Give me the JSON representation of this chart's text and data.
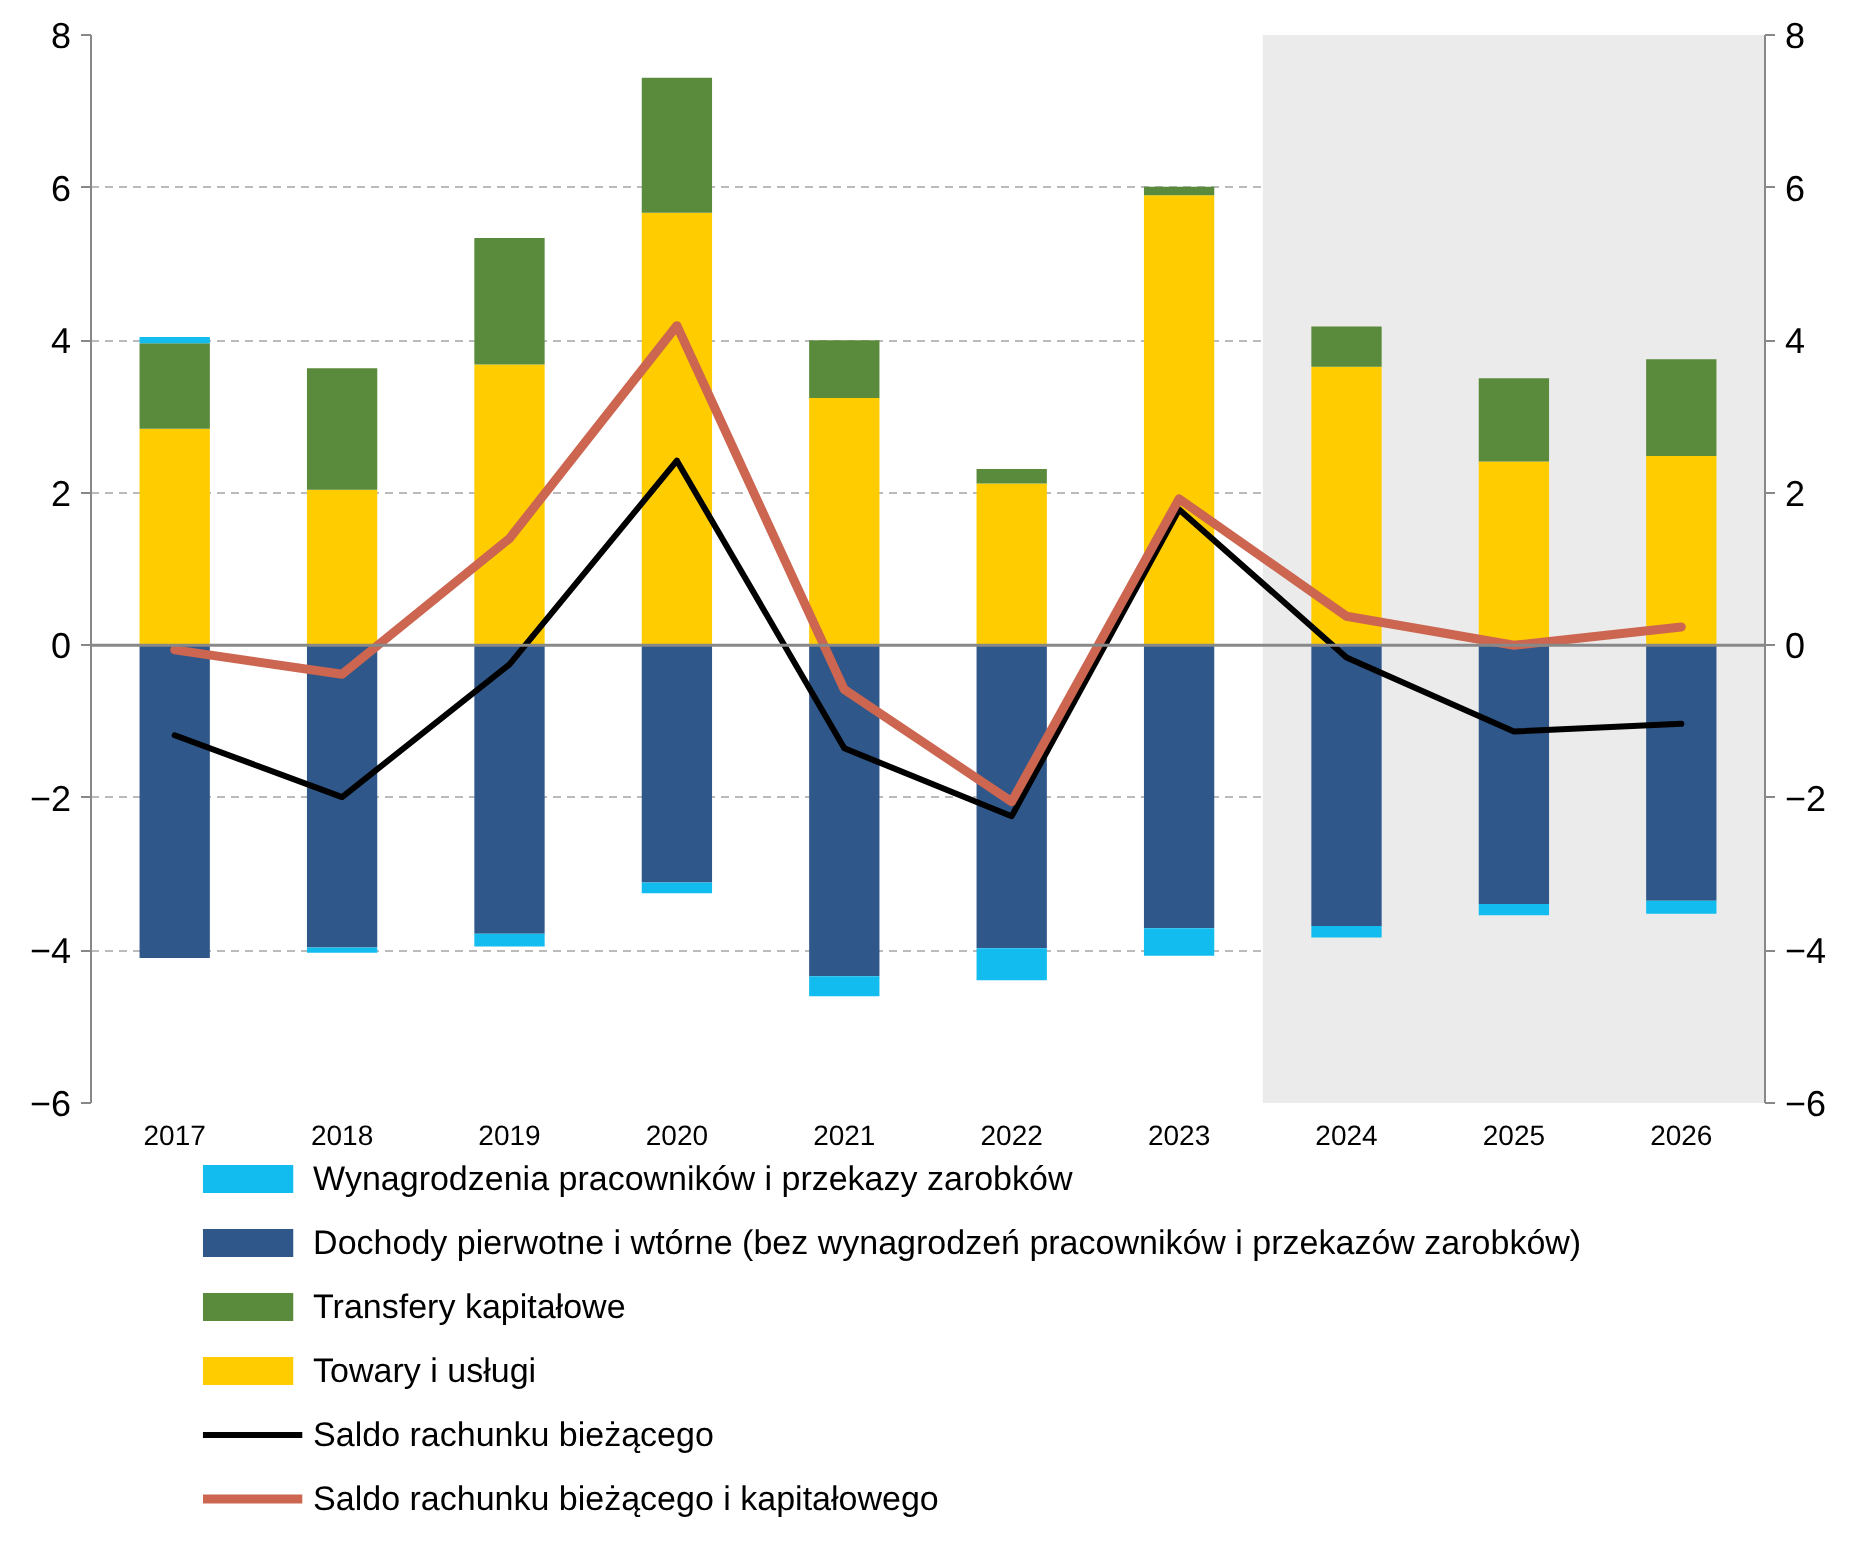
{
  "chart_data": {
    "type": "bar",
    "stacked": true,
    "categories": [
      "2017",
      "2018",
      "2019",
      "2020",
      "2021",
      "2022",
      "2023",
      "2024",
      "2025",
      "2026"
    ],
    "series": [
      {
        "name": "Towary i usługi",
        "color": "#ffcc00",
        "values": [
          2.84,
          2.04,
          3.68,
          5.67,
          3.24,
          2.12,
          5.9,
          3.65,
          2.41,
          2.48
        ]
      },
      {
        "name": "Transfery kapitałowe",
        "color": "#5a8a3c",
        "values": [
          1.12,
          1.59,
          1.66,
          1.77,
          0.76,
          0.19,
          0.11,
          0.53,
          1.09,
          1.27
        ]
      },
      {
        "name": "Dochody pierwotne i wtórne (bez wynagrodzeń pracowników i przekazów zarobków)",
        "color": "#2f5789",
        "values": [
          -4.1,
          -3.96,
          -3.78,
          -3.11,
          -4.34,
          -3.97,
          -3.71,
          -3.68,
          -3.39,
          -3.35
        ]
      },
      {
        "name": "Wynagrodzenia pracowników i przekazy zarobków",
        "color": "#12bcee",
        "values": [
          0.08,
          -0.07,
          -0.17,
          -0.14,
          -0.26,
          -0.42,
          -0.36,
          -0.15,
          -0.15,
          -0.17
        ]
      },
      {
        "name": "Saldo rachunku bieżącego",
        "type": "line",
        "color": "#000000",
        "values": [
          -1.18,
          -1.99,
          -0.25,
          2.42,
          -1.35,
          -2.24,
          1.78,
          -0.16,
          -1.13,
          -1.03
        ]
      },
      {
        "name": "Saldo rachunku bieżącego i kapitałowego",
        "type": "line",
        "color": "#cc6650",
        "values": [
          -0.06,
          -0.38,
          1.4,
          4.19,
          -0.58,
          -2.05,
          1.92,
          0.38,
          0.0,
          0.24
        ]
      }
    ],
    "ylim": [
      -6,
      8
    ],
    "yticks": [
      -6,
      -4,
      -2,
      0,
      2,
      4,
      6,
      8
    ],
    "y2lim": [
      -6,
      8
    ],
    "y2ticks": [
      -6,
      -4,
      -2,
      0,
      2,
      4,
      6,
      8
    ],
    "bands": [
      {
        "axis": "x",
        "from": "2024",
        "to": "2026",
        "color": "#ebebeb"
      }
    ],
    "grid": "y",
    "legend": "bottom",
    "line_style": "solid",
    "marker": "none"
  }
}
